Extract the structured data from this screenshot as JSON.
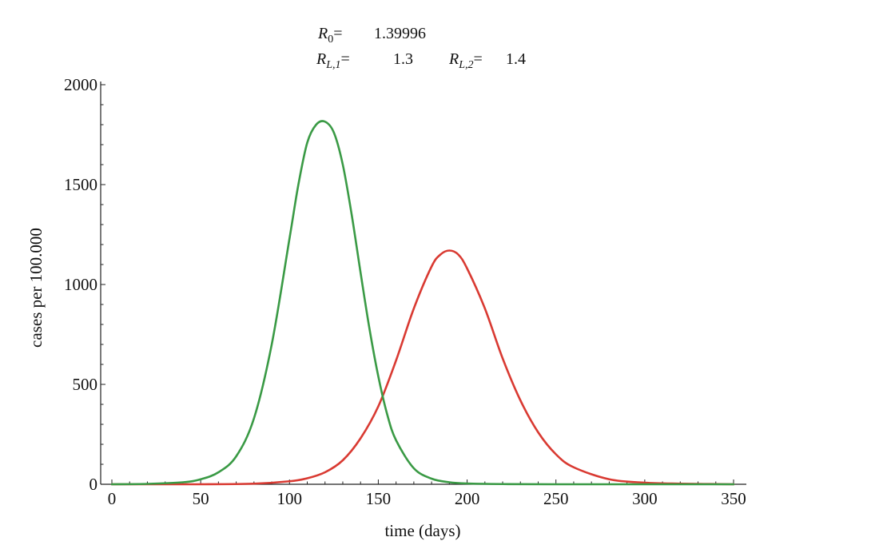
{
  "chart_data": {
    "type": "line",
    "title": "",
    "xlabel": "time (days)",
    "ylabel": "cases per 100.000",
    "xlim": [
      0,
      355
    ],
    "ylim": [
      0,
      2000
    ],
    "xticks": [
      0,
      50,
      100,
      150,
      200,
      250,
      300,
      350
    ],
    "yticks": [
      0,
      500,
      1000,
      1500,
      2000
    ],
    "grid": false,
    "parameters": [
      {
        "symbol": "R",
        "subscript": "0",
        "equals": "=",
        "value": "1.39996"
      },
      {
        "symbol": "R",
        "subscript": "L,1",
        "equals": "=",
        "value": "1.3"
      },
      {
        "symbol": "R",
        "subscript": "L,2",
        "equals": "=",
        "value": "1.4"
      }
    ],
    "series": [
      {
        "name": "green",
        "color": "#3a9a45",
        "x": [
          0,
          20,
          40,
          50,
          60,
          70,
          80,
          90,
          100,
          105,
          110,
          115,
          120,
          125,
          130,
          135,
          140,
          145,
          150,
          155,
          160,
          170,
          180,
          190,
          200,
          220,
          250,
          300,
          350
        ],
        "values": [
          0,
          2,
          10,
          25,
          60,
          140,
          330,
          700,
          1230,
          1500,
          1710,
          1800,
          1815,
          1760,
          1600,
          1350,
          1060,
          780,
          540,
          350,
          220,
          80,
          28,
          10,
          4,
          1,
          0,
          0,
          0
        ]
      },
      {
        "name": "red",
        "color": "#d93a32",
        "x": [
          0,
          50,
          80,
          100,
          110,
          120,
          130,
          140,
          150,
          160,
          170,
          180,
          185,
          190,
          195,
          200,
          210,
          220,
          230,
          240,
          250,
          260,
          280,
          300,
          320,
          350
        ],
        "values": [
          0,
          0,
          3,
          15,
          30,
          60,
          120,
          230,
          390,
          620,
          880,
          1090,
          1150,
          1170,
          1150,
          1080,
          880,
          630,
          420,
          260,
          150,
          85,
          25,
          8,
          3,
          0
        ]
      }
    ]
  }
}
